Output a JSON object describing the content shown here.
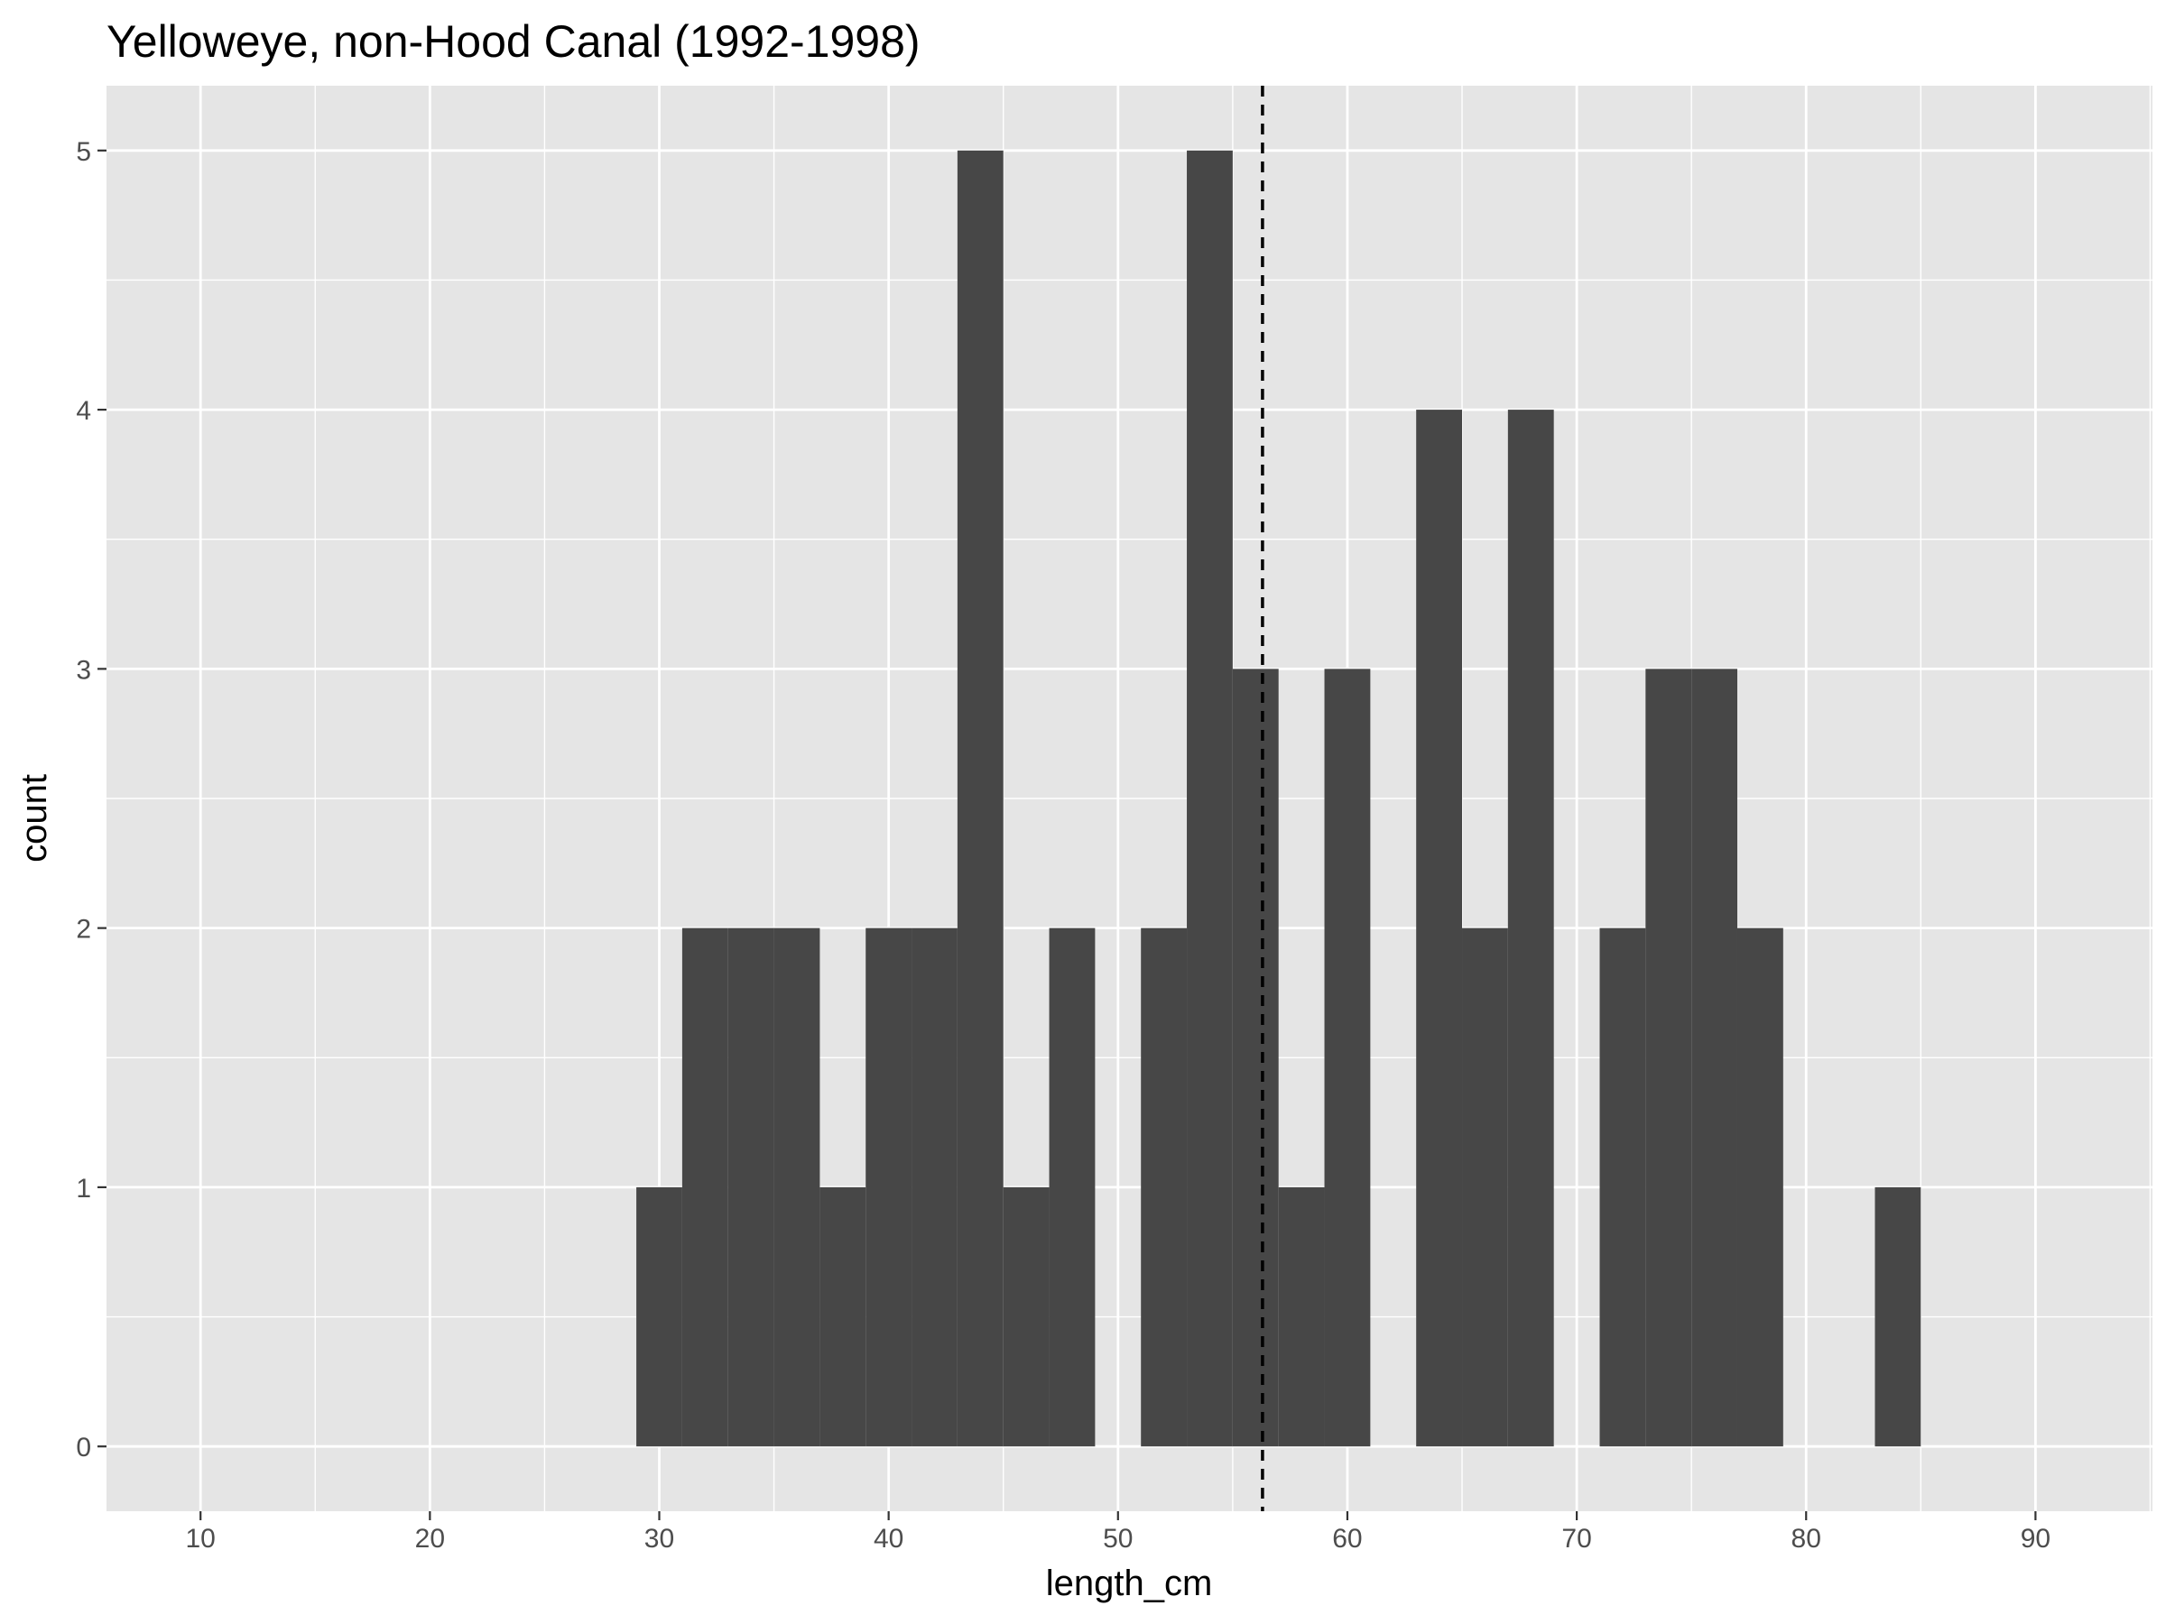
{
  "chart_data": {
    "type": "bar",
    "subtype": "histogram",
    "title": "Yelloweye, non-Hood Canal (1992-1998)",
    "xlabel": "length_cm",
    "ylabel": "count",
    "xlim": [
      5.9,
      95.1
    ],
    "ylim": [
      -0.25,
      5.25
    ],
    "x_ticks": [
      10,
      20,
      30,
      40,
      50,
      60,
      70,
      80,
      90
    ],
    "y_ticks": [
      0,
      1,
      2,
      3,
      4,
      5
    ],
    "bin_width": 2,
    "bins": [
      {
        "x0": 29,
        "x1": 31,
        "count": 1
      },
      {
        "x0": 31,
        "x1": 33,
        "count": 2
      },
      {
        "x0": 33,
        "x1": 35,
        "count": 2
      },
      {
        "x0": 35,
        "x1": 37,
        "count": 2
      },
      {
        "x0": 37,
        "x1": 39,
        "count": 1
      },
      {
        "x0": 39,
        "x1": 41,
        "count": 2
      },
      {
        "x0": 41,
        "x1": 43,
        "count": 2
      },
      {
        "x0": 43,
        "x1": 45,
        "count": 5
      },
      {
        "x0": 45,
        "x1": 47,
        "count": 1
      },
      {
        "x0": 47,
        "x1": 49,
        "count": 2
      },
      {
        "x0": 49,
        "x1": 51,
        "count": 0
      },
      {
        "x0": 51,
        "x1": 53,
        "count": 2
      },
      {
        "x0": 53,
        "x1": 55,
        "count": 5
      },
      {
        "x0": 55,
        "x1": 57,
        "count": 3
      },
      {
        "x0": 57,
        "x1": 59,
        "count": 1
      },
      {
        "x0": 59,
        "x1": 61,
        "count": 3
      },
      {
        "x0": 61,
        "x1": 63,
        "count": 0
      },
      {
        "x0": 63,
        "x1": 65,
        "count": 4
      },
      {
        "x0": 65,
        "x1": 67,
        "count": 2
      },
      {
        "x0": 67,
        "x1": 69,
        "count": 4
      },
      {
        "x0": 69,
        "x1": 71,
        "count": 0
      },
      {
        "x0": 71,
        "x1": 73,
        "count": 2
      },
      {
        "x0": 73,
        "x1": 75,
        "count": 3
      },
      {
        "x0": 75,
        "x1": 77,
        "count": 3
      },
      {
        "x0": 77,
        "x1": 79,
        "count": 2
      },
      {
        "x0": 79,
        "x1": 81,
        "count": 0
      },
      {
        "x0": 81,
        "x1": 83,
        "count": 0
      },
      {
        "x0": 83,
        "x1": 85,
        "count": 1
      }
    ],
    "reference_line": {
      "x": 56.3,
      "style": "dashed",
      "color": "#000000"
    },
    "grid": true,
    "legend": "none",
    "colors": {
      "panel_background": "#e5e5e5",
      "grid_line": "#ffffff",
      "bar_fill": "#474747",
      "tick_text": "#4d4d4d",
      "tick_mark": "#333333",
      "text": "#000000"
    }
  }
}
